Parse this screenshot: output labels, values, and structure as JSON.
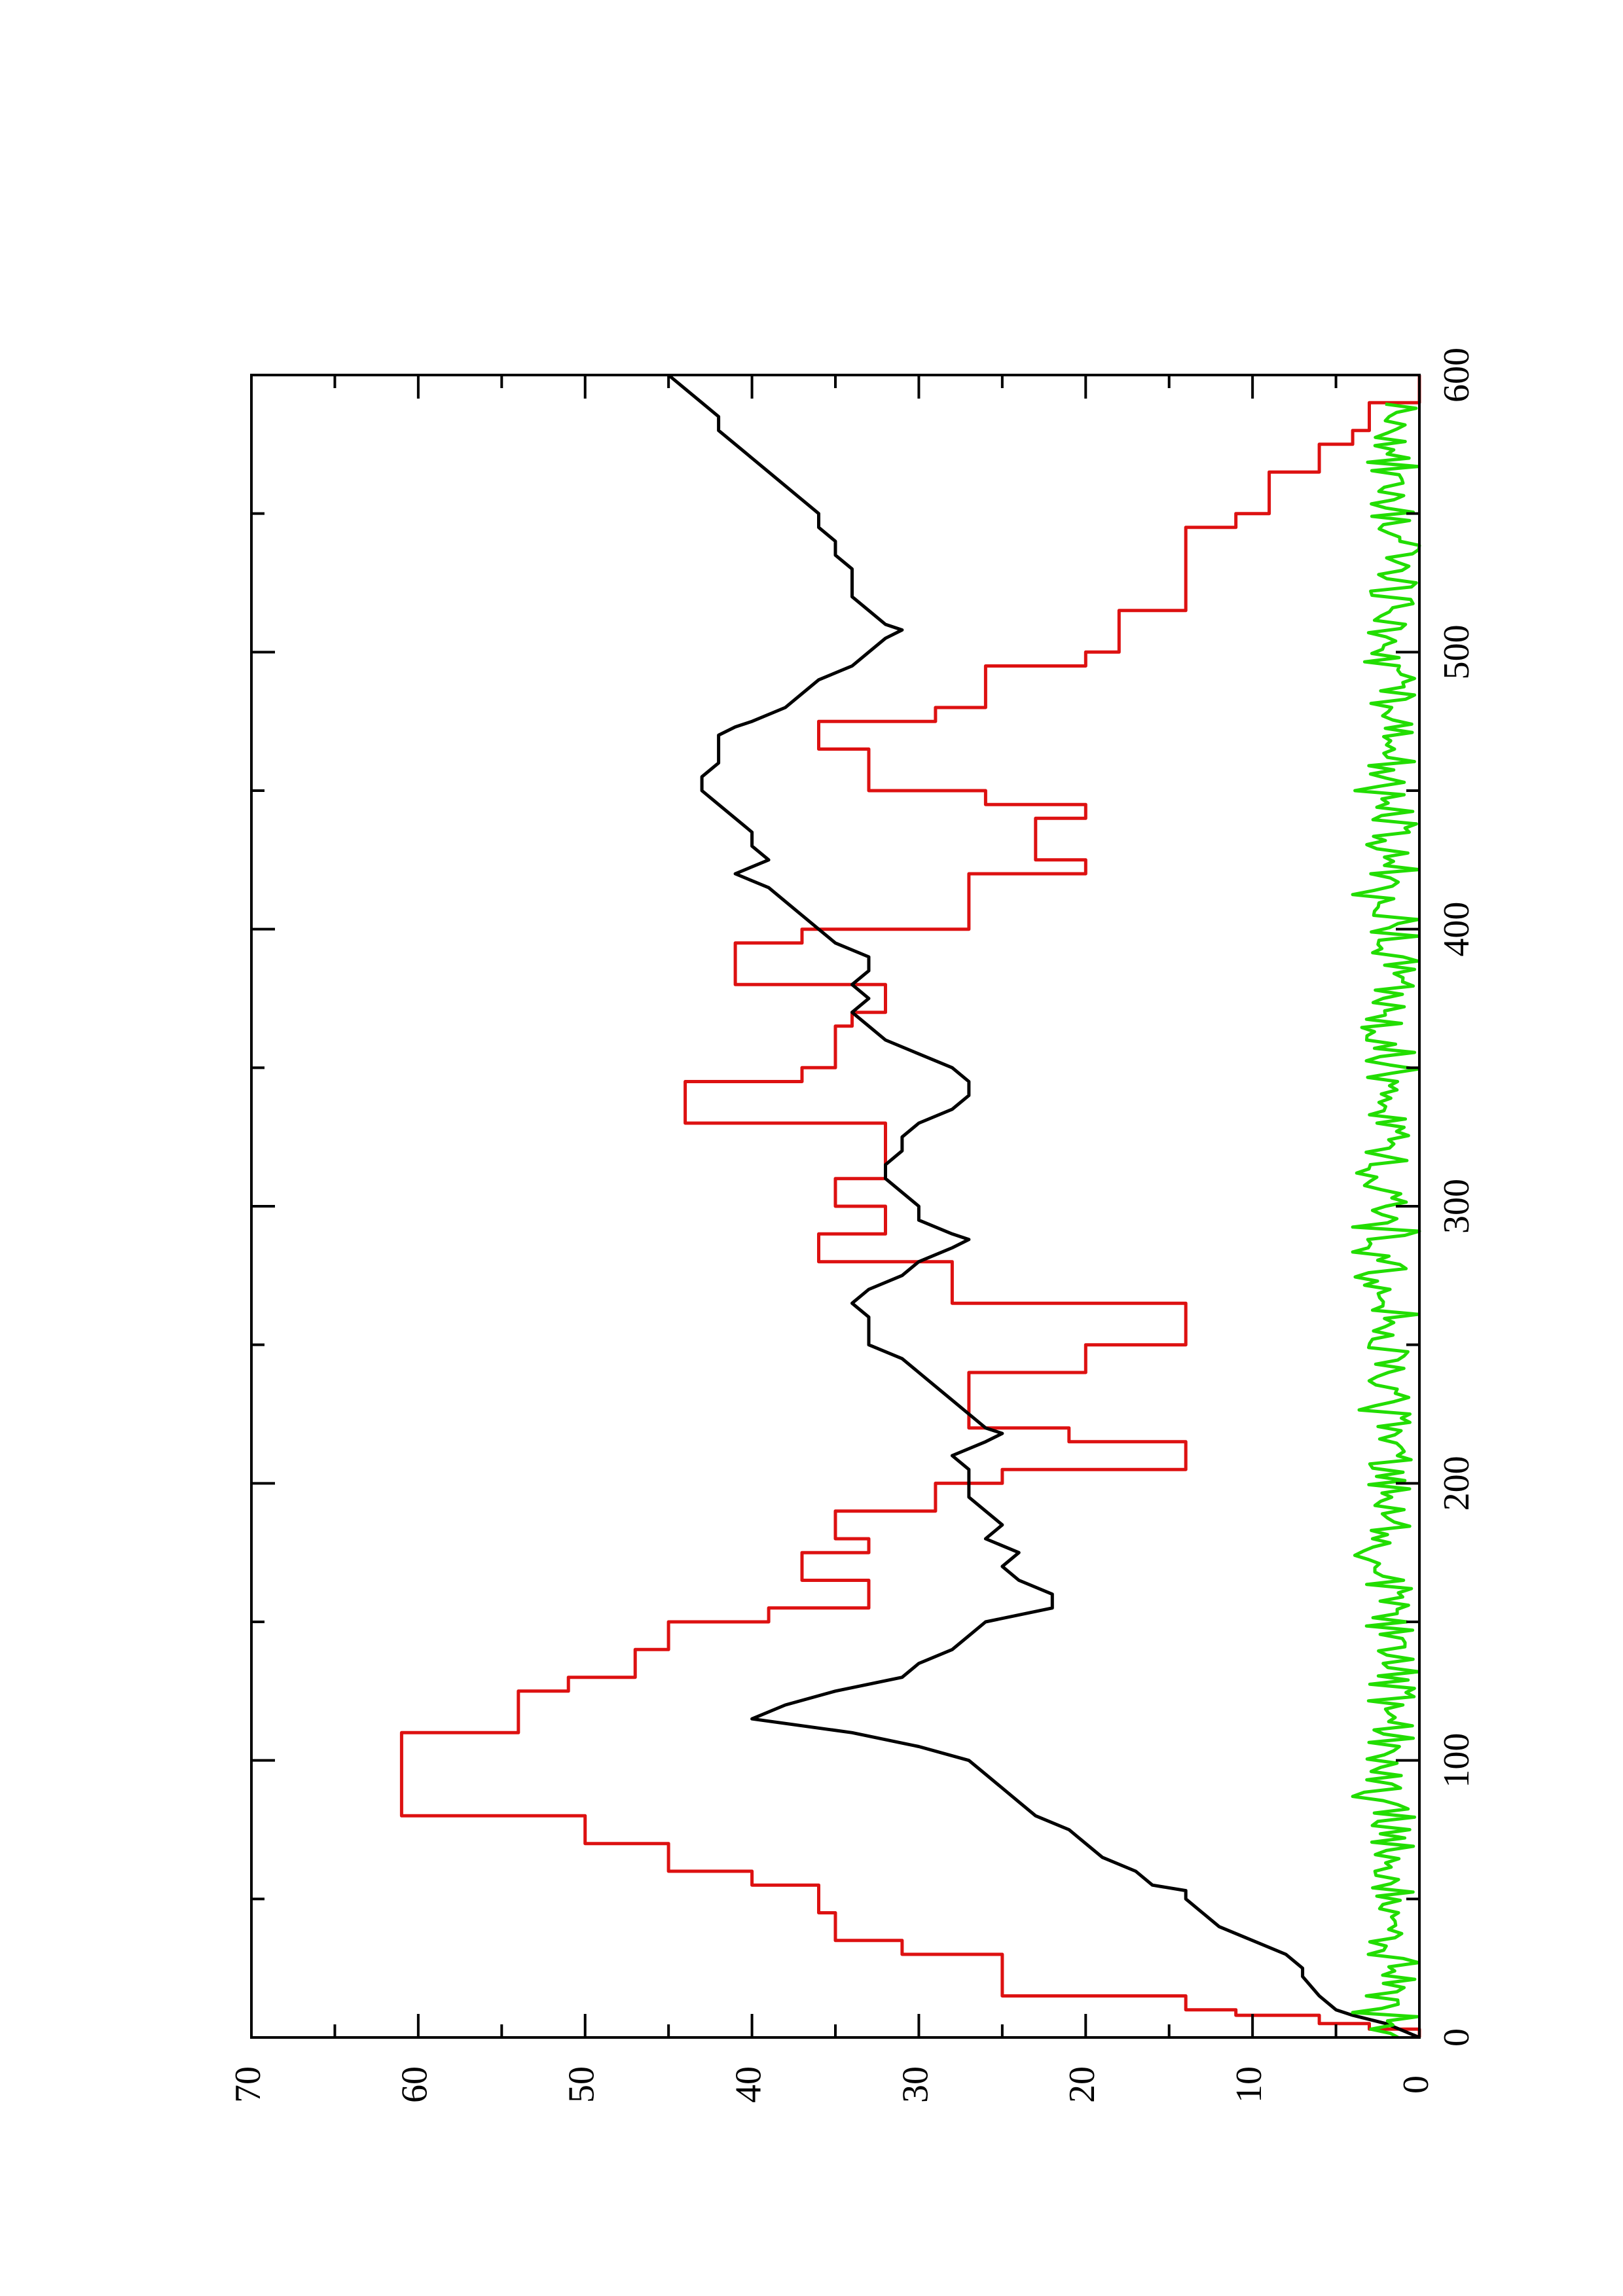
{
  "colors": {
    "red_series": "#dd1111",
    "black_series": "#000000",
    "green_series": "#22dd00",
    "axis": "#000000"
  },
  "chart_data": {
    "type": "line",
    "orientation": "rotated-90-ccw",
    "title": "",
    "xlabel": "",
    "ylabel": "",
    "xlim": [
      0,
      600
    ],
    "ylim": [
      0,
      70
    ],
    "x_ticks": [
      0,
      100,
      200,
      300,
      400,
      500,
      600
    ],
    "x_tick_labels": [
      "0",
      "100",
      "200",
      "300",
      "400",
      "500",
      "600"
    ],
    "y_ticks": [
      0,
      10,
      20,
      30,
      40,
      50,
      60,
      70
    ],
    "y_tick_labels": [
      "0",
      "10",
      "20",
      "30",
      "40",
      "50",
      "60",
      "70"
    ],
    "grid": false,
    "legend": "none",
    "series": [
      {
        "color": "#dd1111",
        "points": [
          [
            0,
            0
          ],
          [
            3,
            0
          ],
          [
            3,
            3
          ],
          [
            5,
            3
          ],
          [
            5,
            6
          ],
          [
            8,
            6
          ],
          [
            8,
            11
          ],
          [
            10,
            11
          ],
          [
            10,
            14
          ],
          [
            15,
            14
          ],
          [
            15,
            25
          ],
          [
            30,
            25
          ],
          [
            30,
            31
          ],
          [
            35,
            31
          ],
          [
            35,
            35
          ],
          [
            45,
            35
          ],
          [
            45,
            36
          ],
          [
            55,
            36
          ],
          [
            55,
            40
          ],
          [
            60,
            40
          ],
          [
            60,
            45
          ],
          [
            70,
            45
          ],
          [
            70,
            50
          ],
          [
            80,
            50
          ],
          [
            80,
            61
          ],
          [
            110,
            61
          ],
          [
            110,
            54
          ],
          [
            125,
            54
          ],
          [
            125,
            51
          ],
          [
            130,
            51
          ],
          [
            130,
            47
          ],
          [
            140,
            47
          ],
          [
            140,
            45
          ],
          [
            150,
            45
          ],
          [
            150,
            39
          ],
          [
            155,
            39
          ],
          [
            155,
            33
          ],
          [
            165,
            33
          ],
          [
            165,
            37
          ],
          [
            175,
            37
          ],
          [
            175,
            33
          ],
          [
            180,
            33
          ],
          [
            180,
            35
          ],
          [
            190,
            35
          ],
          [
            190,
            29
          ],
          [
            200,
            29
          ],
          [
            200,
            25
          ],
          [
            205,
            25
          ],
          [
            205,
            14
          ],
          [
            215,
            14
          ],
          [
            215,
            21
          ],
          [
            220,
            21
          ],
          [
            220,
            27
          ],
          [
            240,
            27
          ],
          [
            240,
            20
          ],
          [
            250,
            20
          ],
          [
            250,
            14
          ],
          [
            265,
            14
          ],
          [
            265,
            28
          ],
          [
            280,
            28
          ],
          [
            280,
            36
          ],
          [
            290,
            36
          ],
          [
            290,
            32
          ],
          [
            300,
            32
          ],
          [
            300,
            35
          ],
          [
            310,
            35
          ],
          [
            310,
            32
          ],
          [
            330,
            32
          ],
          [
            330,
            44
          ],
          [
            345,
            44
          ],
          [
            345,
            37
          ],
          [
            350,
            37
          ],
          [
            350,
            35
          ],
          [
            365,
            35
          ],
          [
            365,
            34
          ],
          [
            370,
            34
          ],
          [
            370,
            32
          ],
          [
            380,
            32
          ],
          [
            380,
            41
          ],
          [
            395,
            41
          ],
          [
            395,
            37
          ],
          [
            400,
            37
          ],
          [
            400,
            27
          ],
          [
            420,
            27
          ],
          [
            420,
            20
          ],
          [
            425,
            20
          ],
          [
            425,
            23
          ],
          [
            440,
            23
          ],
          [
            440,
            20
          ],
          [
            445,
            20
          ],
          [
            445,
            26
          ],
          [
            450,
            26
          ],
          [
            450,
            33
          ],
          [
            465,
            33
          ],
          [
            465,
            36
          ],
          [
            475,
            36
          ],
          [
            475,
            29
          ],
          [
            480,
            29
          ],
          [
            480,
            26
          ],
          [
            495,
            26
          ],
          [
            495,
            20
          ],
          [
            500,
            20
          ],
          [
            500,
            18
          ],
          [
            515,
            18
          ],
          [
            515,
            14
          ],
          [
            545,
            14
          ],
          [
            545,
            11
          ],
          [
            550,
            11
          ],
          [
            550,
            9
          ],
          [
            565,
            9
          ],
          [
            565,
            6
          ],
          [
            575,
            6
          ],
          [
            575,
            4
          ],
          [
            580,
            4
          ],
          [
            580,
            3
          ],
          [
            590,
            3
          ],
          [
            590,
            0
          ],
          [
            600,
            0
          ]
        ]
      },
      {
        "color": "#000000",
        "points": [
          [
            0,
            0
          ],
          [
            5,
            2
          ],
          [
            8,
            4
          ],
          [
            10,
            5
          ],
          [
            15,
            6
          ],
          [
            22,
            7
          ],
          [
            25,
            7
          ],
          [
            30,
            8
          ],
          [
            35,
            10
          ],
          [
            40,
            12
          ],
          [
            45,
            13
          ],
          [
            50,
            14
          ],
          [
            53,
            14
          ],
          [
            55,
            16
          ],
          [
            60,
            17
          ],
          [
            65,
            19
          ],
          [
            70,
            20
          ],
          [
            75,
            21
          ],
          [
            80,
            23
          ],
          [
            85,
            24
          ],
          [
            90,
            25
          ],
          [
            95,
            26
          ],
          [
            100,
            27
          ],
          [
            105,
            30
          ],
          [
            110,
            34
          ],
          [
            115,
            40
          ],
          [
            120,
            38
          ],
          [
            125,
            35
          ],
          [
            130,
            31
          ],
          [
            135,
            30
          ],
          [
            140,
            28
          ],
          [
            145,
            27
          ],
          [
            150,
            26
          ],
          [
            155,
            22
          ],
          [
            160,
            22
          ],
          [
            165,
            24
          ],
          [
            170,
            25
          ],
          [
            175,
            24
          ],
          [
            180,
            26
          ],
          [
            185,
            25
          ],
          [
            190,
            26
          ],
          [
            195,
            27
          ],
          [
            200,
            27
          ],
          [
            205,
            27
          ],
          [
            210,
            28
          ],
          [
            215,
            26
          ],
          [
            218,
            25
          ],
          [
            220,
            26
          ],
          [
            225,
            27
          ],
          [
            230,
            28
          ],
          [
            235,
            29
          ],
          [
            240,
            30
          ],
          [
            245,
            31
          ],
          [
            250,
            33
          ],
          [
            255,
            33
          ],
          [
            260,
            33
          ],
          [
            265,
            34
          ],
          [
            270,
            33
          ],
          [
            275,
            31
          ],
          [
            280,
            30
          ],
          [
            285,
            28
          ],
          [
            288,
            27
          ],
          [
            290,
            28
          ],
          [
            295,
            30
          ],
          [
            300,
            30
          ],
          [
            305,
            31
          ],
          [
            310,
            32
          ],
          [
            315,
            32
          ],
          [
            320,
            31
          ],
          [
            325,
            31
          ],
          [
            330,
            30
          ],
          [
            335,
            28
          ],
          [
            340,
            27
          ],
          [
            345,
            27
          ],
          [
            350,
            28
          ],
          [
            355,
            30
          ],
          [
            360,
            32
          ],
          [
            365,
            33
          ],
          [
            370,
            34
          ],
          [
            375,
            33
          ],
          [
            380,
            34
          ],
          [
            385,
            33
          ],
          [
            390,
            33
          ],
          [
            395,
            35
          ],
          [
            400,
            36
          ],
          [
            405,
            37
          ],
          [
            410,
            38
          ],
          [
            415,
            39
          ],
          [
            420,
            41
          ],
          [
            425,
            39
          ],
          [
            430,
            40
          ],
          [
            435,
            40
          ],
          [
            440,
            41
          ],
          [
            445,
            42
          ],
          [
            450,
            43
          ],
          [
            455,
            43
          ],
          [
            460,
            42
          ],
          [
            465,
            42
          ],
          [
            470,
            42
          ],
          [
            473,
            41
          ],
          [
            475,
            40
          ],
          [
            480,
            38
          ],
          [
            485,
            37
          ],
          [
            490,
            36
          ],
          [
            495,
            34
          ],
          [
            500,
            33
          ],
          [
            505,
            32
          ],
          [
            508,
            31
          ],
          [
            510,
            32
          ],
          [
            515,
            33
          ],
          [
            520,
            34
          ],
          [
            525,
            34
          ],
          [
            530,
            34
          ],
          [
            535,
            35
          ],
          [
            540,
            35
          ],
          [
            545,
            36
          ],
          [
            550,
            36
          ],
          [
            555,
            37
          ],
          [
            560,
            38
          ],
          [
            565,
            39
          ],
          [
            570,
            40
          ],
          [
            575,
            41
          ],
          [
            580,
            42
          ],
          [
            585,
            42
          ],
          [
            590,
            43
          ],
          [
            595,
            44
          ],
          [
            600,
            45
          ]
        ]
      },
      {
        "color": "#22dd00",
        "points": []
      }
    ]
  }
}
